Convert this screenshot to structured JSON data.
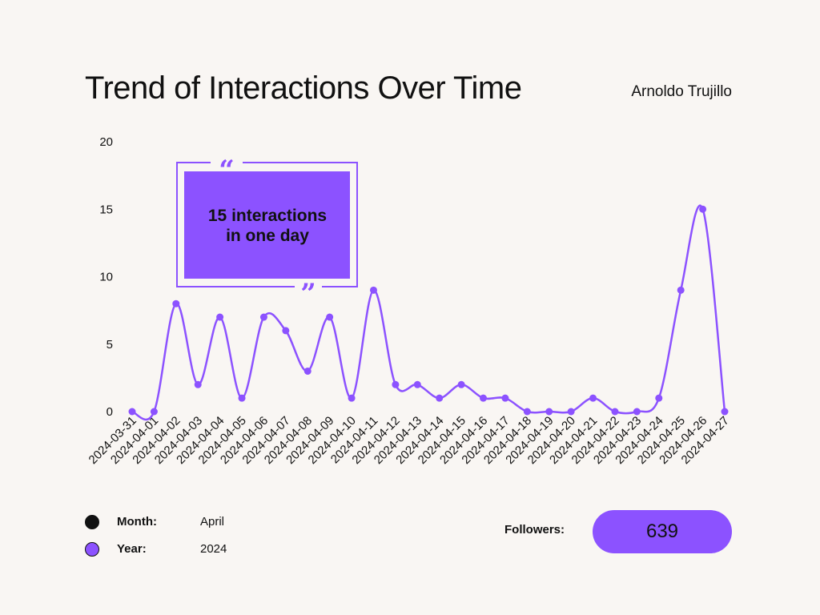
{
  "header": {
    "title": "Trend of Interactions Over Time",
    "author": "Arnoldo Trujillo"
  },
  "colors": {
    "accent": "#8c52ff",
    "text": "#111111",
    "background": "#f9f6f3"
  },
  "callout": {
    "line1": "15 interactions",
    "line2": "in one day",
    "open_quote": "“",
    "close_quote": "”"
  },
  "legend": [
    {
      "key": "Month:",
      "value": "April",
      "color": "#111111"
    },
    {
      "key": "Year:",
      "value": "2024",
      "color": "#8c52ff"
    }
  ],
  "followers": {
    "label": "Followers:",
    "value": "639"
  },
  "chart_data": {
    "type": "line",
    "title": "Trend of Interactions Over Time",
    "xlabel": "",
    "ylabel": "",
    "ylim": [
      0,
      20
    ],
    "yticks": [
      0,
      5,
      10,
      15,
      20
    ],
    "grid": false,
    "categories": [
      "2024-03-31",
      "2024-04-01",
      "2024-04-02",
      "2024-04-03",
      "2024-04-04",
      "2024-04-05",
      "2024-04-06",
      "2024-04-07",
      "2024-04-08",
      "2024-04-09",
      "2024-04-10",
      "2024-04-11",
      "2024-04-12",
      "2024-04-13",
      "2024-04-14",
      "2024-04-15",
      "2024-04-16",
      "2024-04-17",
      "2024-04-18",
      "2024-04-19",
      "2024-04-20",
      "2024-04-21",
      "2024-04-22",
      "2024-04-23",
      "2024-04-24",
      "2024-04-25",
      "2024-04-26",
      "2024-04-27"
    ],
    "series": [
      {
        "color": "#8c52ff",
        "values": [
          0,
          0,
          8,
          2,
          7,
          1,
          7,
          6,
          3,
          7,
          1,
          9,
          2,
          2,
          1,
          2,
          1,
          1,
          0,
          0,
          0,
          1,
          0,
          0,
          1,
          9,
          15,
          0
        ]
      }
    ]
  }
}
